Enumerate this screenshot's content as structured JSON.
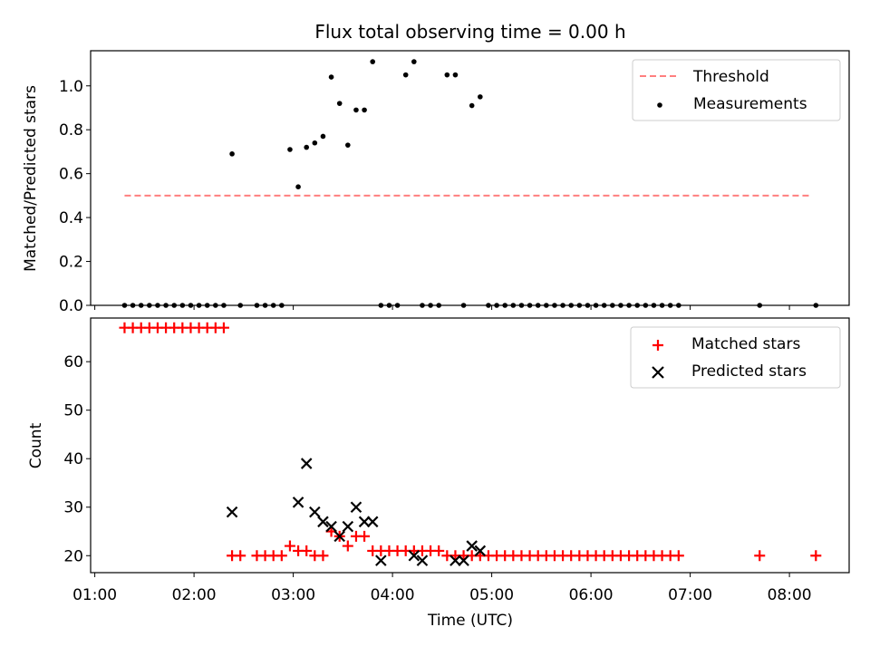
{
  "chart_data": [
    {
      "type": "scatter",
      "title": "Flux total observing time = 0.00 h",
      "xlabel": "",
      "ylabel": "Matched/Predicted stars",
      "ylim": [
        0,
        1.16
      ],
      "yticks": [
        "0.0",
        "0.2",
        "0.4",
        "0.6",
        "0.8",
        "1.0"
      ],
      "legend_position": "top-right",
      "threshold": {
        "name": "Threshold",
        "value": 0.5,
        "x_start": "01:18",
        "x_end": "08:13",
        "color": "#ff7f7f",
        "style": "dashed"
      },
      "series": [
        {
          "name": "Measurements",
          "color": "#000000",
          "marker": "dot",
          "x": [
            "01:18",
            "01:23",
            "01:28",
            "01:33",
            "01:38",
            "01:43",
            "01:48",
            "01:53",
            "01:58",
            "02:03",
            "02:08",
            "02:13",
            "02:18",
            "02:23",
            "02:28",
            "02:38",
            "02:43",
            "02:48",
            "02:53",
            "02:58",
            "03:03",
            "03:08",
            "03:13",
            "03:18",
            "03:23",
            "03:28",
            "03:33",
            "03:38",
            "03:43",
            "03:48",
            "03:53",
            "03:58",
            "04:03",
            "04:08",
            "04:13",
            "04:18",
            "04:23",
            "04:28",
            "04:33",
            "04:38",
            "04:43",
            "04:48",
            "04:53",
            "04:58",
            "05:03",
            "05:08",
            "05:13",
            "05:18",
            "05:23",
            "05:28",
            "05:33",
            "05:38",
            "05:43",
            "05:48",
            "05:53",
            "05:58",
            "06:03",
            "06:08",
            "06:13",
            "06:18",
            "06:23",
            "06:28",
            "06:33",
            "06:38",
            "06:43",
            "06:48",
            "06:53",
            "07:42",
            "08:16"
          ],
          "y": [
            0,
            0,
            0,
            0,
            0,
            0,
            0,
            0,
            0,
            0,
            0,
            0,
            0,
            0.69,
            0,
            0,
            0,
            0,
            0,
            0.71,
            0.54,
            0.72,
            0.74,
            0.77,
            1.04,
            0.92,
            0.73,
            0.89,
            0.89,
            1.11,
            0,
            0,
            0,
            1.05,
            1.11,
            0,
            0,
            0,
            1.05,
            1.05,
            0,
            0.91,
            0.95,
            0,
            0,
            0,
            0,
            0,
            0,
            0,
            0,
            0,
            0,
            0,
            0,
            0,
            0,
            0,
            0,
            0,
            0,
            0,
            0,
            0,
            0,
            0,
            0,
            0,
            0
          ]
        }
      ]
    },
    {
      "type": "scatter",
      "title": "",
      "xlabel": "Time (UTC)",
      "ylabel": "Count",
      "ylim": [
        16.5,
        69
      ],
      "yticks": [
        "20",
        "30",
        "40",
        "50",
        "60"
      ],
      "xticks": [
        "01:00",
        "02:00",
        "03:00",
        "04:00",
        "05:00",
        "06:00",
        "07:00",
        "08:00"
      ],
      "legend_position": "top-right",
      "series": [
        {
          "name": "Matched stars",
          "color": "#ff0000",
          "marker": "plus",
          "x": [
            "01:18",
            "01:23",
            "01:28",
            "01:33",
            "01:38",
            "01:43",
            "01:48",
            "01:53",
            "01:58",
            "02:03",
            "02:08",
            "02:13",
            "02:18",
            "02:23",
            "02:28",
            "02:38",
            "02:43",
            "02:48",
            "02:53",
            "02:58",
            "03:03",
            "03:08",
            "03:13",
            "03:18",
            "03:23",
            "03:28",
            "03:33",
            "03:38",
            "03:43",
            "03:48",
            "03:53",
            "03:58",
            "04:03",
            "04:08",
            "04:13",
            "04:18",
            "04:23",
            "04:28",
            "04:33",
            "04:38",
            "04:43",
            "04:48",
            "04:53",
            "04:58",
            "05:03",
            "05:08",
            "05:13",
            "05:18",
            "05:23",
            "05:28",
            "05:33",
            "05:38",
            "05:43",
            "05:48",
            "05:53",
            "05:58",
            "06:03",
            "06:08",
            "06:13",
            "06:18",
            "06:23",
            "06:28",
            "06:33",
            "06:38",
            "06:43",
            "06:48",
            "06:53",
            "07:42",
            "08:16"
          ],
          "y": [
            67,
            67,
            67,
            67,
            67,
            67,
            67,
            67,
            67,
            67,
            67,
            67,
            67,
            20,
            20,
            20,
            20,
            20,
            20,
            22,
            21,
            21,
            20,
            20,
            25,
            24,
            22,
            24,
            24,
            21,
            21,
            21,
            21,
            21,
            21,
            21,
            21,
            21,
            20,
            20,
            20,
            20,
            20,
            20,
            20,
            20,
            20,
            20,
            20,
            20,
            20,
            20,
            20,
            20,
            20,
            20,
            20,
            20,
            20,
            20,
            20,
            20,
            20,
            20,
            20,
            20,
            20,
            20,
            20
          ]
        },
        {
          "name": "Predicted stars",
          "color": "#000000",
          "marker": "cross",
          "x": [
            "02:23",
            "03:03",
            "03:08",
            "03:13",
            "03:18",
            "03:23",
            "03:28",
            "03:33",
            "03:38",
            "03:43",
            "03:48",
            "03:53",
            "04:13",
            "04:18",
            "04:38",
            "04:43",
            "04:48",
            "04:53"
          ],
          "y": [
            29,
            31,
            39,
            29,
            27,
            26,
            24,
            26,
            30,
            27,
            27,
            19,
            20,
            19,
            19,
            19,
            22,
            21
          ]
        }
      ]
    }
  ]
}
